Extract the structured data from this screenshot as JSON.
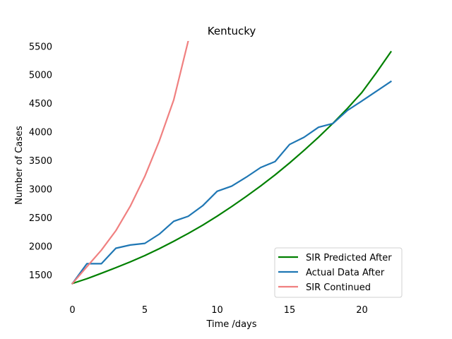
{
  "chart_data": {
    "type": "line",
    "title": "Kentucky",
    "xlabel": "Time /days",
    "ylabel": "Number of Cases",
    "xlim": [
      -1.1,
      23.1
    ],
    "ylim": [
      1240,
      5590
    ],
    "xticks": [
      0,
      5,
      10,
      15,
      20
    ],
    "yticks": [
      1500,
      2000,
      2500,
      3000,
      3500,
      4000,
      4500,
      5000,
      5500
    ],
    "grid": false,
    "legend_position": "lower right",
    "series": [
      {
        "name": "SIR Predicted After",
        "color": "#008000",
        "x": [
          0,
          1,
          2,
          3,
          4,
          5,
          6,
          7,
          8,
          9,
          10,
          11,
          12,
          13,
          14,
          15,
          16,
          17,
          18,
          19,
          20,
          21,
          22
        ],
        "y": [
          1346,
          1430,
          1525,
          1623,
          1725,
          1835,
          1955,
          2085,
          2222,
          2367,
          2525,
          2692,
          2868,
          3052,
          3247,
          3455,
          3675,
          3905,
          4150,
          4410,
          4690,
          5035,
          5400
        ]
      },
      {
        "name": "Actual Data After",
        "color": "#1f77b4",
        "x": [
          0,
          1,
          2,
          3,
          4,
          5,
          6,
          7,
          8,
          9,
          10,
          11,
          12,
          13,
          14,
          15,
          16,
          17,
          18,
          19,
          20,
          21,
          22
        ],
        "y": [
          1346,
          1693,
          1693,
          1963,
          2020,
          2048,
          2210,
          2435,
          2522,
          2707,
          2960,
          3050,
          3205,
          3375,
          3480,
          3779,
          3905,
          4080,
          4146,
          4375,
          4540,
          4710,
          4880
        ]
      },
      {
        "name": "SIR Continued",
        "color": "#f08080",
        "x": [
          0,
          1,
          2,
          3,
          4,
          5,
          6,
          7,
          8
        ],
        "y": [
          1346,
          1640,
          1930,
          2270,
          2700,
          3220,
          3840,
          4560,
          5590
        ]
      }
    ]
  }
}
